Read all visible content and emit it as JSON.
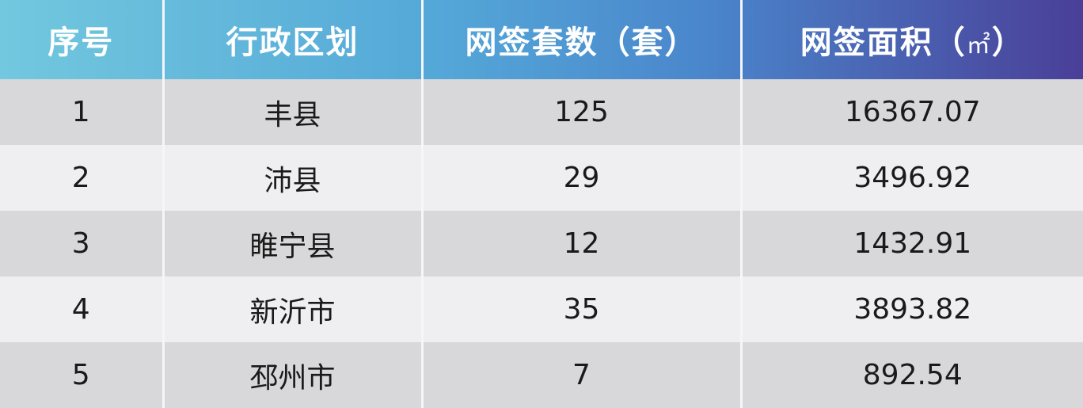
{
  "table": {
    "headers": [
      "序号",
      "行政区划",
      "网签套数（套）",
      "网签面积（",
      "㎡",
      "）"
    ],
    "rows": [
      [
        "1",
        "丰县",
        "125",
        "16367.07"
      ],
      [
        "2",
        "沛县",
        "29",
        "3496.92"
      ],
      [
        "3",
        "睢宁县",
        "12",
        "1432.91"
      ],
      [
        "4",
        "新沂市",
        "35",
        "3893.82"
      ],
      [
        "5",
        "邳州市",
        "7",
        "892.54"
      ]
    ]
  },
  "colors": {
    "header_start": "#72c8de",
    "header_end": "#4a3f98",
    "row_dark": "#d8d8da",
    "row_light": "#efeff1"
  }
}
